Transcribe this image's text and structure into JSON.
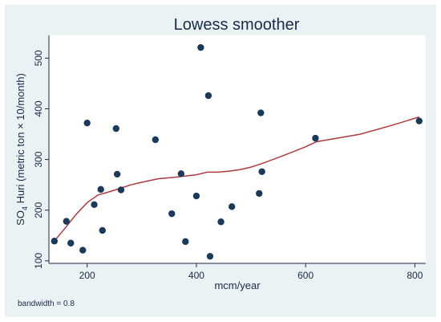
{
  "chart_data": {
    "type": "scatter",
    "title": "Lowess smoother",
    "xlabel": "mcm/year",
    "ylabel": "SO4 Huri (metric ton × 10/month)",
    "ylabel_parts": {
      "base": "SO",
      "sub": "4",
      "rest": " Huri (metric ton × 10/month)"
    },
    "xlim": [
      130,
      820
    ],
    "ylim": [
      95,
      545
    ],
    "xticks": [
      200,
      400,
      600,
      800
    ],
    "yticks": [
      100,
      200,
      300,
      400,
      500
    ],
    "grid": false,
    "note": "bandwidth = 0.8",
    "colors": {
      "points": "#1a3a5c",
      "line": "#b03a3e",
      "text": "#1a2a4a",
      "background": "#eaf2f3"
    },
    "series": [
      {
        "type": "scatter",
        "x": [
          140,
          162,
          170,
          192,
          200,
          213,
          225,
          228,
          253,
          255,
          262,
          325,
          355,
          372,
          380,
          400,
          408,
          422,
          425,
          445,
          465,
          515,
          518,
          520,
          618,
          808
        ],
        "y": [
          139,
          178,
          135,
          121,
          372,
          211,
          241,
          160,
          361,
          271,
          240,
          339,
          193,
          272,
          138,
          228,
          521,
          426,
          109,
          177,
          207,
          233,
          392,
          276,
          342,
          376
        ]
      },
      {
        "type": "line",
        "x": [
          140,
          160,
          180,
          200,
          220,
          240,
          260,
          280,
          300,
          330,
          360,
          400,
          420,
          440,
          460,
          480,
          500,
          520,
          560,
          600,
          620,
          700,
          760,
          808
        ],
        "y": [
          139,
          165,
          192,
          215,
          230,
          236,
          243,
          250,
          255,
          262,
          265,
          270,
          275,
          275,
          277,
          280,
          285,
          292,
          308,
          325,
          335,
          350,
          368,
          384
        ]
      }
    ]
  }
}
